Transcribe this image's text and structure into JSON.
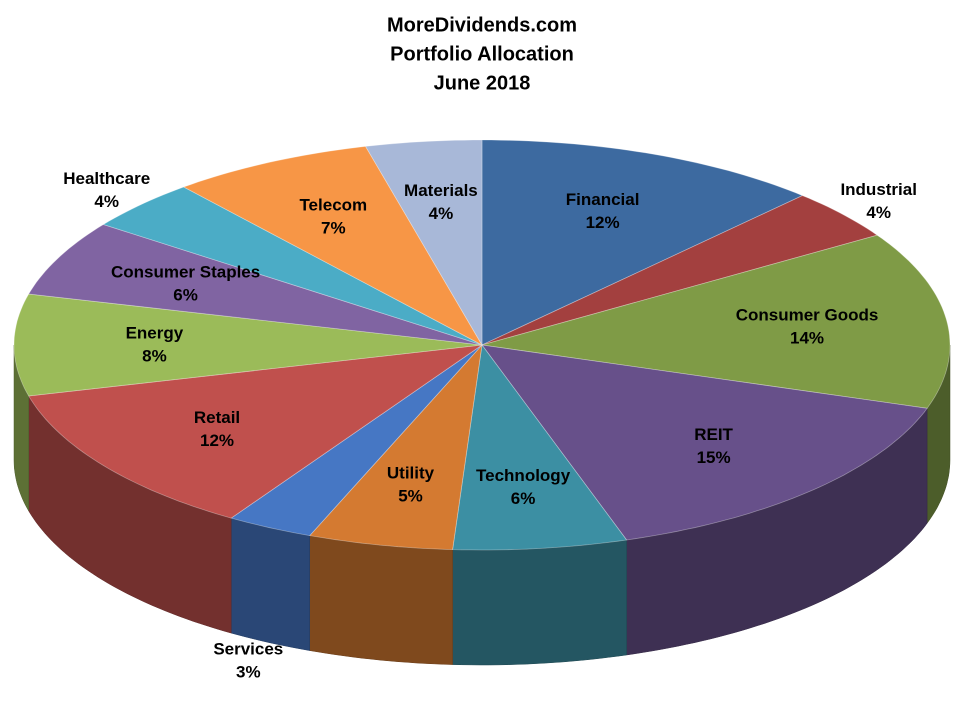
{
  "chart_data": {
    "type": "pie",
    "title": [
      "MoreDividends.com",
      "Portfolio Allocation",
      "June 2018"
    ],
    "categories": [
      "Financial",
      "Industrial",
      "Consumer Goods",
      "REIT",
      "Technology",
      "Utility",
      "Services",
      "Retail",
      "Energy",
      "Consumer Staples",
      "Healthcare",
      "Telecom",
      "Materials"
    ],
    "values": [
      12,
      4,
      14,
      15,
      6,
      5,
      3,
      12,
      8,
      6,
      4,
      7,
      4
    ],
    "value_labels": [
      "12%",
      "4%",
      "14%",
      "15%",
      "6%",
      "5%",
      "3%",
      "12%",
      "8%",
      "6%",
      "4%",
      "7%",
      "4%"
    ],
    "colors": [
      "#3d6aa0",
      "#a3403f",
      "#7f9b46",
      "#67508a",
      "#3c8fa3",
      "#d47a31",
      "#4677c4",
      "#c0504d",
      "#9bbb59",
      "#8064a2",
      "#4bacc6",
      "#f79646",
      "#a8b8d8"
    ]
  }
}
